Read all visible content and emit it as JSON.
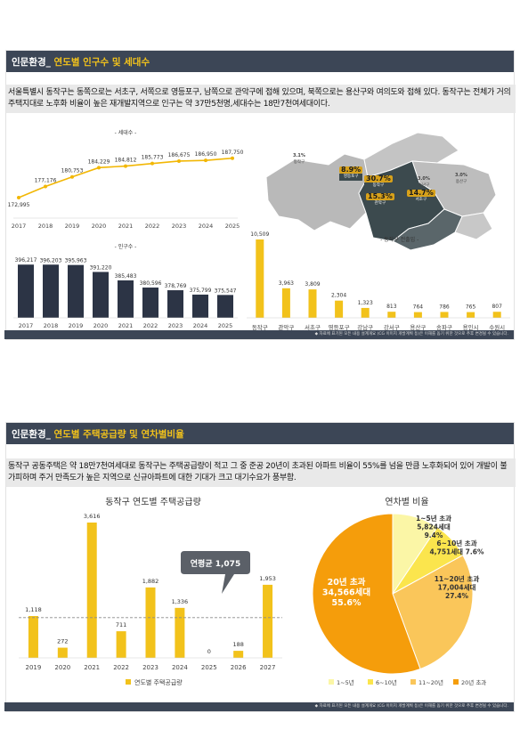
{
  "section1": {
    "header_prefix": "인문환경_ ",
    "header_highlight": "연도별 인구수 및 세대수",
    "description": "서울특별시 동작구는 동쪽으로는 서초구, 서쪽으로 영등포구, 남쪽으로 관악구에 접해 있으며, 북쪽으로는 용산구와 여의도와 접해 있다. 동작구는 전체가 거의 주택지대로 노후화 비율이 높은 재개발지역으로 인구는 약 37만5천명,세대수는 18만7천여세대이다.",
    "footnote": "◆ 자료에 표기된 모든 내용 설계개요 (CG 이미지 개발계획 등)은 이해를 돕기 위한 것으로 추후 변경될 수 있습니다."
  },
  "section2": {
    "header_prefix": "인문환경_ ",
    "header_highlight": "연도별 주택공급량 및 연차별비율",
    "description": "동작구 공동주택은 약 18만7천여세대로  동작구는 주택공급량이 적고 그 중 준공 20년이 초과된 아파트 비율이 55%를 넘을 만큼 노후화되어 있어 개발이 불가피하며  주거 만족도가 높은 지역으로 신규아파트에 대한 기대가 크고 대기수요가 풍부함.",
    "footnote": "◆ 자료에 표기된 모든 내용 설계개요 (CG 이미지 개발계획 등)은 이해를 돕기 위한 것으로 추후 변경될 수 있습니다.",
    "avg_label": "연평균 1,075"
  },
  "map": {
    "labels": [
      {
        "text": "3.1%",
        "sub": "동작구"
      },
      {
        "text": "8.9%",
        "sub": "영등포구"
      },
      {
        "text": "30.7%",
        "sub": "동작구"
      },
      {
        "text": "3.0%",
        "sub": "용산구"
      },
      {
        "text": "3.0%",
        "sub": "강남구"
      },
      {
        "text": "15.3%",
        "sub": "관악구"
      },
      {
        "text": "14.7%",
        "sub": "서초구"
      }
    ],
    "colors": {
      "base": "#b9b9b9",
      "highlight": "#3c4a4e",
      "label_bg": "#d7a11a"
    }
  },
  "chart_data": [
    {
      "type": "line",
      "title": "- 세대수 -",
      "x": [
        "2017",
        "2018",
        "2019",
        "2020",
        "2021",
        "2022",
        "2023",
        "2024",
        "2025"
      ],
      "values": [
        172995,
        177176,
        180753,
        184229,
        184812,
        185773,
        186675,
        186950,
        187750
      ],
      "value_labels": [
        "172,995",
        "177,176",
        "180,753",
        "184,229",
        "184,812",
        "185,773",
        "186,675",
        "186,950",
        "187,750"
      ],
      "color": "#f2b705"
    },
    {
      "type": "bar",
      "title": "- 인구수 -",
      "categories": [
        "2017",
        "2018",
        "2019",
        "2020",
        "2021",
        "2022",
        "2023",
        "2024",
        "2025"
      ],
      "values": [
        396217,
        396203,
        395963,
        391220,
        385483,
        380596,
        378769,
        375799,
        375547
      ],
      "value_labels": [
        "396,217",
        "396,203",
        "395,963",
        "391,220",
        "385,483",
        "380,596",
        "378,769",
        "375,799",
        "375,547"
      ],
      "color": "#2c3445"
    },
    {
      "type": "bar",
      "title": "- 동작구 전출입 -",
      "categories": [
        "동작구",
        "관악구",
        "서초구",
        "영등포구",
        "강남구",
        "강서구",
        "용산구",
        "송파구",
        "용인시",
        "수원시"
      ],
      "values": [
        10509,
        3963,
        3809,
        2304,
        1323,
        813,
        764,
        786,
        765,
        807
      ],
      "value_labels": [
        "10,509",
        "3,963",
        "3,809",
        "2,304",
        "1,323",
        "813",
        "764",
        "786",
        "765",
        "807"
      ],
      "color": "#f2c21b"
    },
    {
      "type": "bar",
      "title": "동작구 연도별 주택공급량",
      "categories": [
        "2019",
        "2020",
        "2021",
        "2022",
        "2023",
        "2024",
        "2025",
        "2026",
        "2027"
      ],
      "values": [
        1118,
        272,
        3616,
        711,
        1882,
        1336,
        0,
        188,
        1953
      ],
      "value_labels": [
        "1,118",
        "272",
        "3,616",
        "711",
        "1,882",
        "1,336",
        "0",
        "188",
        "1,953"
      ],
      "average": 1075,
      "legend": [
        "연도별 주택공급량"
      ],
      "color": "#f2c21b"
    },
    {
      "type": "pie",
      "title": "연차별 비율",
      "slices": [
        {
          "name": "1~5년",
          "line1": "1~5년 초과",
          "line2": "5,824세대",
          "line3": "9.4%",
          "value": 9.4,
          "color": "#fbf6a6"
        },
        {
          "name": "6~10년",
          "line1": "6~10년 초과",
          "line2": "4,751세대 7.6%",
          "line3": "",
          "value": 7.6,
          "color": "#fbe54d"
        },
        {
          "name": "11~20년",
          "line1": "11~20년 초과",
          "line2": "17,004세대",
          "line3": "27.4%",
          "value": 27.4,
          "color": "#fac65a"
        },
        {
          "name": "20년 초과",
          "line1": "20년 초과",
          "line2": "34,566세대",
          "line3": "55.6%",
          "value": 55.6,
          "color": "#f59d0b"
        }
      ],
      "legend": [
        "1~5년",
        "6~10년",
        "11~20년",
        "20년 초과"
      ]
    }
  ]
}
